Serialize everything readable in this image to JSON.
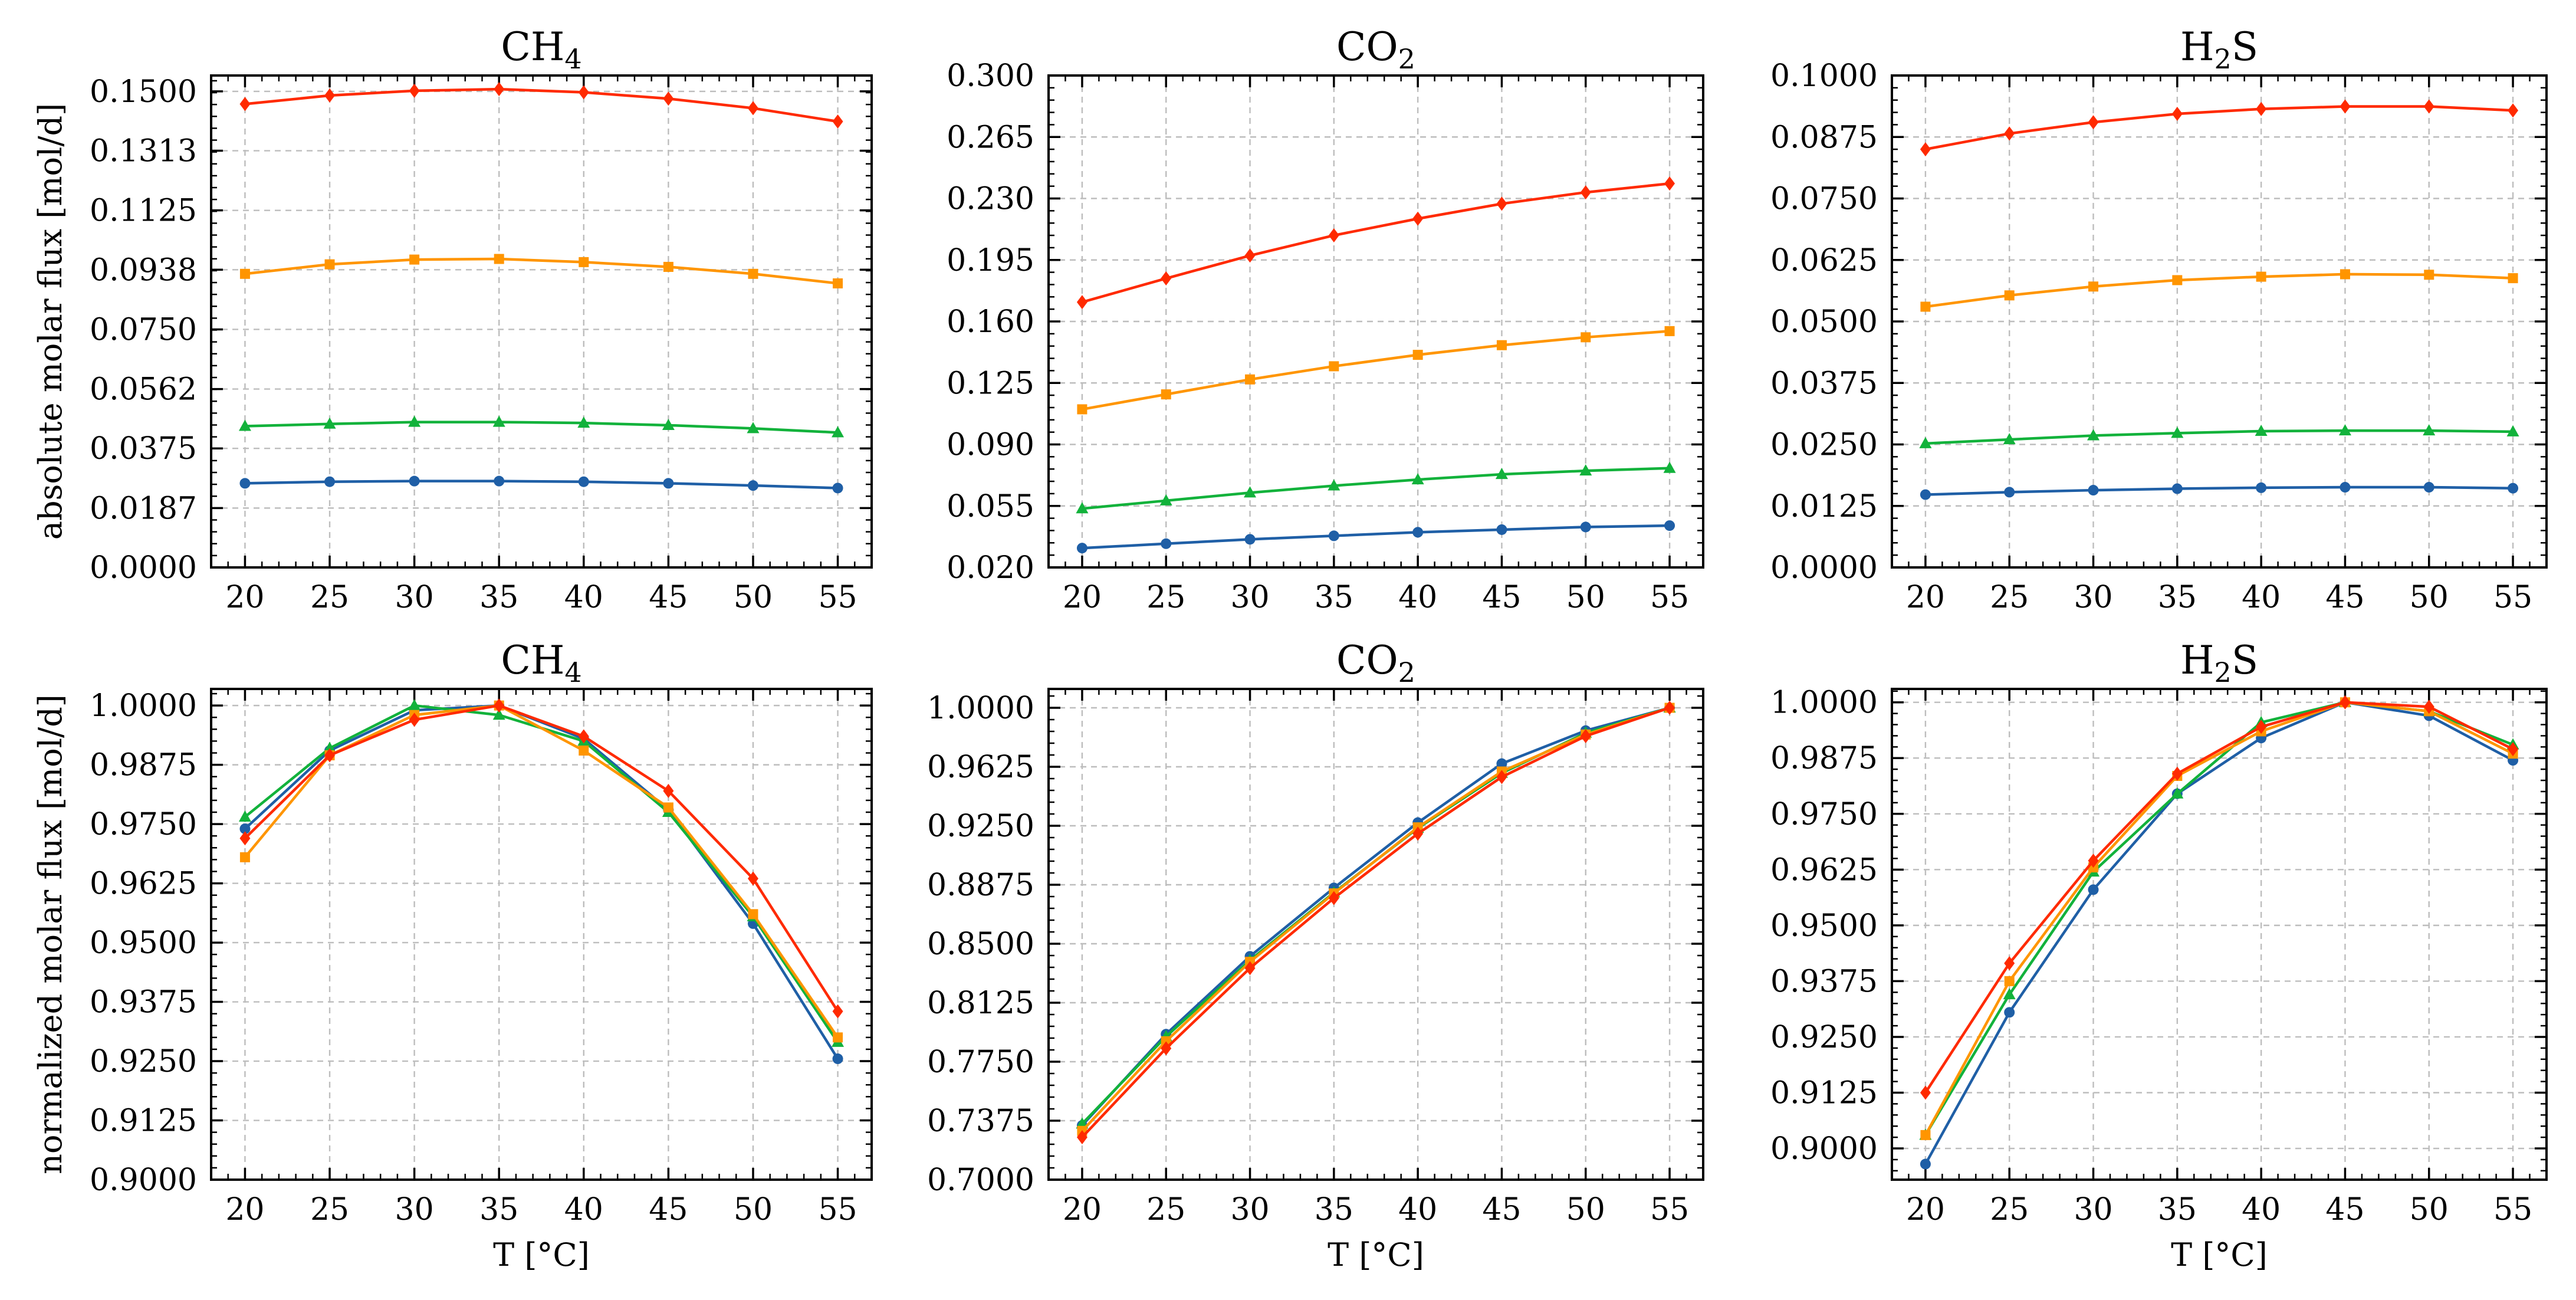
{
  "x_axis_title": "T [°C]",
  "row_y_titles": [
    "absolute molar flux [mol/d]",
    "normalized molar flux [mol/d]"
  ],
  "colors": {
    "blue": "#1f5fa6",
    "green": "#12b23b",
    "orange": "#ff9500",
    "red": "#ff2a00"
  },
  "chart_data": [
    {
      "type": "line",
      "row": 0,
      "col": 0,
      "title": "CH4",
      "title_main": "CH",
      "title_sub": "4",
      "title_tail": "",
      "xlabel": "",
      "ylabel": "absolute molar flux [mol/d]",
      "x": [
        20,
        25,
        30,
        35,
        40,
        45,
        50,
        55
      ],
      "x_ticks": [
        "20",
        "25",
        "30",
        "35",
        "40",
        "45",
        "50",
        "55"
      ],
      "ylim": [
        0.0,
        0.155
      ],
      "y_ticks": [
        0.0,
        0.0187,
        0.0375,
        0.0562,
        0.075,
        0.0938,
        0.1125,
        0.1313,
        0.15
      ],
      "y_tick_labels": [
        "0.0000",
        "0.0187",
        "0.0375",
        "0.0562",
        "0.0750",
        "0.0938",
        "0.1125",
        "0.1313",
        "0.1500"
      ],
      "series": [
        {
          "name": "blue",
          "color": "#1f5fa6",
          "marker": "circle",
          "values": [
            0.0265,
            0.027,
            0.0272,
            0.0272,
            0.027,
            0.0265,
            0.0258,
            0.025
          ]
        },
        {
          "name": "green",
          "color": "#12b23b",
          "marker": "triangle",
          "values": [
            0.0445,
            0.0452,
            0.0458,
            0.0458,
            0.0455,
            0.0448,
            0.0438,
            0.0425
          ]
        },
        {
          "name": "orange",
          "color": "#ff9500",
          "marker": "square",
          "values": [
            0.0925,
            0.0955,
            0.097,
            0.0972,
            0.0962,
            0.0947,
            0.0925,
            0.0895
          ]
        },
        {
          "name": "red",
          "color": "#ff2a00",
          "marker": "diamond",
          "values": [
            0.146,
            0.1487,
            0.1502,
            0.1507,
            0.1497,
            0.1477,
            0.1447,
            0.1405
          ]
        }
      ]
    },
    {
      "type": "line",
      "row": 0,
      "col": 1,
      "title": "CO2",
      "title_main": "CO",
      "title_sub": "2",
      "title_tail": "",
      "xlabel": "",
      "ylabel": "",
      "x": [
        20,
        25,
        30,
        35,
        40,
        45,
        50,
        55
      ],
      "x_ticks": [
        "20",
        "25",
        "30",
        "35",
        "40",
        "45",
        "50",
        "55"
      ],
      "ylim": [
        0.02,
        0.3
      ],
      "y_ticks": [
        0.02,
        0.055,
        0.09,
        0.125,
        0.16,
        0.195,
        0.23,
        0.265,
        0.3
      ],
      "y_tick_labels": [
        "0.020",
        "0.055",
        "0.090",
        "0.125",
        "0.160",
        "0.195",
        "0.230",
        "0.265",
        "0.300"
      ],
      "series": [
        {
          "name": "blue",
          "color": "#1f5fa6",
          "marker": "circle",
          "values": [
            0.031,
            0.0335,
            0.036,
            0.038,
            0.04,
            0.0415,
            0.043,
            0.0438
          ]
        },
        {
          "name": "green",
          "color": "#12b23b",
          "marker": "triangle",
          "values": [
            0.0535,
            0.058,
            0.0625,
            0.0665,
            0.07,
            0.073,
            0.075,
            0.0765
          ]
        },
        {
          "name": "orange",
          "color": "#ff9500",
          "marker": "square",
          "values": [
            0.11,
            0.1185,
            0.127,
            0.1345,
            0.141,
            0.1465,
            0.151,
            0.1545
          ]
        },
        {
          "name": "red",
          "color": "#ff2a00",
          "marker": "diamond",
          "values": [
            0.171,
            0.1845,
            0.1975,
            0.209,
            0.2185,
            0.227,
            0.2335,
            0.2385
          ]
        }
      ]
    },
    {
      "type": "line",
      "row": 0,
      "col": 2,
      "title": "H2S",
      "title_main": "H",
      "title_sub": "2",
      "title_tail": "S",
      "xlabel": "",
      "ylabel": "",
      "x": [
        20,
        25,
        30,
        35,
        40,
        45,
        50,
        55
      ],
      "x_ticks": [
        "20",
        "25",
        "30",
        "35",
        "40",
        "45",
        "50",
        "55"
      ],
      "ylim": [
        0.0,
        0.1
      ],
      "y_ticks": [
        0.0,
        0.0125,
        0.025,
        0.0375,
        0.05,
        0.0625,
        0.075,
        0.0875,
        0.1
      ],
      "y_tick_labels": [
        "0.0000",
        "0.0125",
        "0.0250",
        "0.0375",
        "0.0500",
        "0.0625",
        "0.0750",
        "0.0875",
        "0.1000"
      ],
      "series": [
        {
          "name": "blue",
          "color": "#1f5fa6",
          "marker": "circle",
          "values": [
            0.0148,
            0.0153,
            0.0157,
            0.016,
            0.0162,
            0.0163,
            0.0163,
            0.0161
          ]
        },
        {
          "name": "green",
          "color": "#12b23b",
          "marker": "triangle",
          "values": [
            0.0252,
            0.026,
            0.0268,
            0.0273,
            0.0277,
            0.0278,
            0.0278,
            0.0276
          ]
        },
        {
          "name": "orange",
          "color": "#ff9500",
          "marker": "square",
          "values": [
            0.053,
            0.0553,
            0.0571,
            0.0584,
            0.0591,
            0.0596,
            0.0595,
            0.0588
          ]
        },
        {
          "name": "red",
          "color": "#ff2a00",
          "marker": "diamond",
          "values": [
            0.085,
            0.0882,
            0.0905,
            0.0922,
            0.0932,
            0.0937,
            0.0937,
            0.0929
          ]
        }
      ]
    },
    {
      "type": "line",
      "row": 1,
      "col": 0,
      "title": "CH4",
      "title_main": "CH",
      "title_sub": "4",
      "title_tail": "",
      "xlabel": "T [°C]",
      "ylabel": "normalized molar flux [mol/d]",
      "x": [
        20,
        25,
        30,
        35,
        40,
        45,
        50,
        55
      ],
      "x_ticks": [
        "20",
        "25",
        "30",
        "35",
        "40",
        "45",
        "50",
        "55"
      ],
      "ylim": [
        0.9,
        1.0035
      ],
      "y_ticks": [
        0.9,
        0.9125,
        0.925,
        0.9375,
        0.95,
        0.9625,
        0.975,
        0.9875,
        1.0
      ],
      "y_tick_labels": [
        "0.9000",
        "0.9125",
        "0.9250",
        "0.9375",
        "0.9500",
        "0.9625",
        "0.9750",
        "0.9875",
        "1.0000"
      ],
      "series": [
        {
          "name": "blue",
          "color": "#1f5fa6",
          "marker": "circle",
          "values": [
            0.974,
            0.9905,
            0.999,
            1.0,
            0.993,
            0.978,
            0.954,
            0.9255
          ]
        },
        {
          "name": "green",
          "color": "#12b23b",
          "marker": "triangle",
          "values": [
            0.9765,
            0.991,
            1.0,
            0.998,
            0.9925,
            0.9775,
            0.9555,
            0.929
          ]
        },
        {
          "name": "orange",
          "color": "#ff9500",
          "marker": "square",
          "values": [
            0.968,
            0.9895,
            0.998,
            1.0,
            0.9905,
            0.9785,
            0.956,
            0.93
          ]
        },
        {
          "name": "red",
          "color": "#ff2a00",
          "marker": "diamond",
          "values": [
            0.972,
            0.9895,
            0.997,
            1.0,
            0.9935,
            0.982,
            0.9635,
            0.9355
          ]
        }
      ]
    },
    {
      "type": "line",
      "row": 1,
      "col": 1,
      "title": "CO2",
      "title_main": "CO",
      "title_sub": "2",
      "title_tail": "",
      "xlabel": "T [°C]",
      "ylabel": "",
      "x": [
        20,
        25,
        30,
        35,
        40,
        45,
        50,
        55
      ],
      "x_ticks": [
        "20",
        "25",
        "30",
        "35",
        "40",
        "45",
        "50",
        "55"
      ],
      "ylim": [
        0.7,
        1.012
      ],
      "y_ticks": [
        0.7,
        0.7375,
        0.775,
        0.8125,
        0.85,
        0.8875,
        0.925,
        0.9625,
        1.0
      ],
      "y_tick_labels": [
        "0.7000",
        "0.7375",
        "0.7750",
        "0.8125",
        "0.8500",
        "0.8875",
        "0.9250",
        "0.9625",
        "1.0000"
      ],
      "series": [
        {
          "name": "blue",
          "color": "#1f5fa6",
          "marker": "circle",
          "values": [
            0.7345,
            0.7925,
            0.842,
            0.8855,
            0.927,
            0.9645,
            0.9855,
            1.0
          ]
        },
        {
          "name": "green",
          "color": "#12b23b",
          "marker": "triangle",
          "values": [
            0.7355,
            0.791,
            0.8395,
            0.8825,
            0.9235,
            0.9585,
            0.984,
            1.0
          ]
        },
        {
          "name": "orange",
          "color": "#ff9500",
          "marker": "square",
          "values": [
            0.731,
            0.788,
            0.8385,
            0.882,
            0.924,
            0.9595,
            0.983,
            1.0
          ]
        },
        {
          "name": "red",
          "color": "#ff2a00",
          "marker": "diamond",
          "values": [
            0.727,
            0.7835,
            0.8345,
            0.879,
            0.92,
            0.956,
            0.982,
            1.0
          ]
        }
      ]
    },
    {
      "type": "line",
      "row": 1,
      "col": 2,
      "title": "H2S",
      "title_main": "H",
      "title_sub": "2",
      "title_tail": "S",
      "xlabel": "T [°C]",
      "ylabel": "",
      "x": [
        20,
        25,
        30,
        35,
        40,
        45,
        50,
        55
      ],
      "x_ticks": [
        "20",
        "25",
        "30",
        "35",
        "40",
        "45",
        "50",
        "55"
      ],
      "ylim": [
        0.893,
        1.003
      ],
      "y_ticks": [
        0.9,
        0.9125,
        0.925,
        0.9375,
        0.95,
        0.9625,
        0.975,
        0.9875,
        1.0
      ],
      "y_tick_labels": [
        "0.9000",
        "0.9125",
        "0.9250",
        "0.9375",
        "0.9500",
        "0.9625",
        "0.9750",
        "0.9875",
        "1.0000"
      ],
      "series": [
        {
          "name": "blue",
          "color": "#1f5fa6",
          "marker": "circle",
          "values": [
            0.8965,
            0.9305,
            0.958,
            0.9795,
            0.992,
            1.0,
            0.997,
            0.987
          ]
        },
        {
          "name": "green",
          "color": "#12b23b",
          "marker": "triangle",
          "values": [
            0.903,
            0.9345,
            0.962,
            0.9795,
            0.9955,
            1.0,
            0.998,
            0.9905
          ]
        },
        {
          "name": "orange",
          "color": "#ff9500",
          "marker": "square",
          "values": [
            0.903,
            0.9375,
            0.963,
            0.9835,
            0.9935,
            1.0,
            0.998,
            0.9885
          ]
        },
        {
          "name": "red",
          "color": "#ff2a00",
          "marker": "diamond",
          "values": [
            0.9125,
            0.9415,
            0.9645,
            0.984,
            0.9945,
            1.0,
            0.999,
            0.9895
          ]
        }
      ]
    }
  ]
}
